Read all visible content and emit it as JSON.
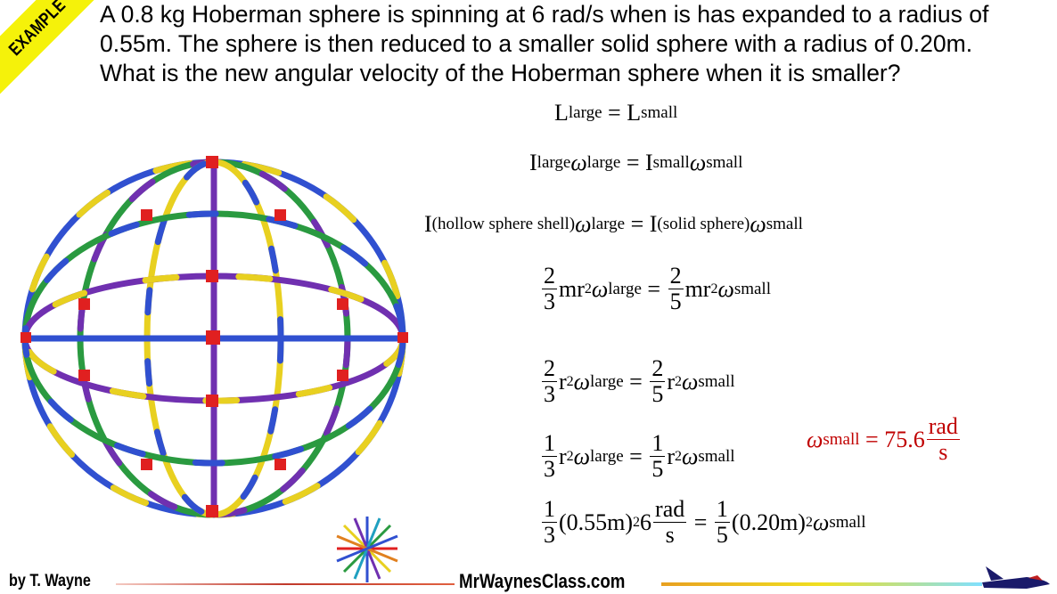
{
  "banner": {
    "label": "EXAMPLE",
    "color": "#f5f20a"
  },
  "question": "A 0.8 kg Hoberman sphere is spinning at 6 rad/s when is has expanded to a radius of 0.55m. The sphere is then reduced to a smaller solid sphere with a radius of 0.20m. What is the new angular velocity of the Hoberman sphere when it is smaller?",
  "eqs": {
    "e1": {
      "L": "L",
      "large": "large",
      "eq": "=",
      "small": "small"
    },
    "e2": {
      "I": "I",
      "w": "ω",
      "large": "large",
      "eq": "=",
      "small": "small"
    },
    "e3": {
      "I": "I",
      "hollow": "(hollow sphere shell)",
      "w": "ω",
      "large": "large",
      "eq": "=",
      "solid": "(solid sphere)",
      "small": "small"
    },
    "e4": {
      "n1": "2",
      "d1": "3",
      "mr": "mr",
      "sq": "2",
      "w": "ω",
      "large": "large",
      "eq": "=",
      "n2": "2",
      "d2": "5",
      "small": "small"
    },
    "e5": {
      "n1": "2",
      "d1": "3",
      "r": "r",
      "sq": "2",
      "w": "ω",
      "large": "large",
      "eq": "=",
      "n2": "2",
      "d2": "5",
      "small": "small"
    },
    "e6": {
      "n1": "1",
      "d1": "3",
      "r": "r",
      "sq": "2",
      "w": "ω",
      "large": "large",
      "eq": "=",
      "n2": "1",
      "d2": "5",
      "small": "small"
    },
    "e7": {
      "n1": "1",
      "d1": "3",
      "r1": "(0.55m)",
      "sq": "2",
      "six": "6",
      "rad": "rad",
      "s": "s",
      "eq": "=",
      "n2": "1",
      "d2": "5",
      "r2": "(0.20m)",
      "w": "ω",
      "small": "small"
    },
    "answer": {
      "w": "ω",
      "small": "small",
      "eq": "= 75.6",
      "rad": "rad",
      "s": "s",
      "color": "#c00000"
    }
  },
  "footer": {
    "author": "by T. Wayne",
    "site": "MrWaynesClass.com"
  }
}
